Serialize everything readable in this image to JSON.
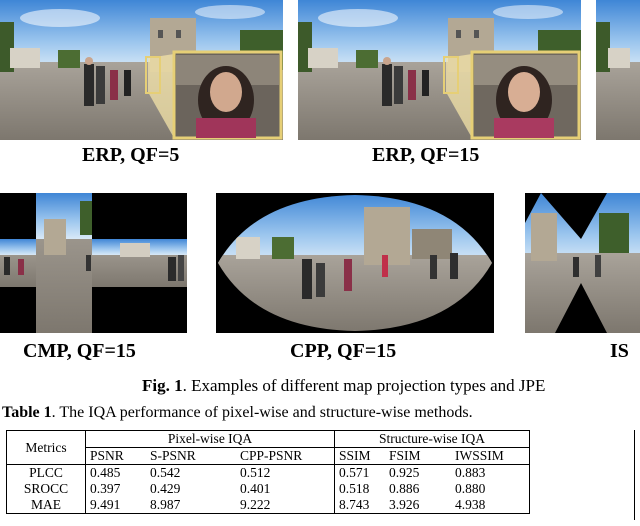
{
  "figure": {
    "row1": [
      {
        "label": "ERP, QF=5"
      },
      {
        "label": "ERP, QF=15"
      }
    ],
    "row2": [
      {
        "label": "CMP, QF=15"
      },
      {
        "label": "CPP, QF=15"
      },
      {
        "label": "IS"
      }
    ],
    "caption_prefix": "Fig. 1",
    "caption_text": ". Examples of different map projection types and JPE"
  },
  "table": {
    "caption_prefix": "Table 1",
    "caption_text": ". The IQA performance of pixel-wise and structure-wise methods.",
    "metrics_header": "Metrics",
    "group1": "Pixel-wise IQA",
    "group2": "Structure-wise IQA",
    "columns": [
      "PSNR",
      "S-PSNR",
      "CPP-PSNR",
      "SSIM",
      "FSIM",
      "IWSSIM"
    ],
    "rows": [
      {
        "label": "PLCC",
        "values": [
          "0.485",
          "0.542",
          "0.512",
          "0.571",
          "0.925",
          "0.883"
        ]
      },
      {
        "label": "SROCC",
        "values": [
          "0.397",
          "0.429",
          "0.401",
          "0.518",
          "0.886",
          "0.880"
        ]
      },
      {
        "label": "MAE",
        "values": [
          "9.491",
          "8.987",
          "9.222",
          "8.743",
          "3.926",
          "4.938"
        ]
      }
    ]
  }
}
